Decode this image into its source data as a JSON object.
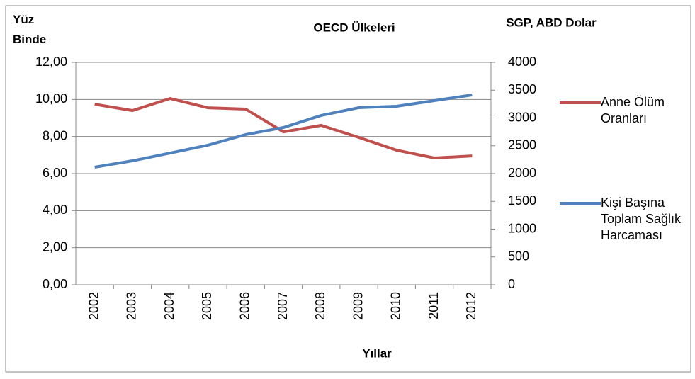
{
  "chart_data": {
    "type": "line",
    "title": "OECD Ülkeleri",
    "y_label": "Yüz Binde",
    "y2_label": "SGP, ABD Dolar",
    "x_label": "Yıllar",
    "categories": [
      "2002",
      "2003",
      "2004",
      "2005",
      "2006",
      "2007",
      "2008",
      "2009",
      "2010",
      "2011",
      "2012"
    ],
    "series": [
      {
        "name": "Anne Ölüm Oranları",
        "color": "#c0504d",
        "values": [
          9.74,
          9.4,
          10.05,
          9.55,
          9.48,
          8.25,
          8.6,
          7.95,
          7.26,
          6.84,
          6.95
        ]
      },
      {
        "name": "Kişi Başına Toplam Sağlık Harcaması",
        "color": "#4f81bd",
        "axis": "y2",
        "values": [
          2115,
          2229,
          2369,
          2510,
          2701,
          2828,
          3045,
          3185,
          3210,
          3312,
          3414
        ]
      }
    ],
    "ylim": [
      0,
      12
    ],
    "yticks": [
      {
        "value": 0,
        "label": "0,00"
      },
      {
        "value": 2,
        "label": "2,00"
      },
      {
        "value": 4,
        "label": "4,00"
      },
      {
        "value": 6,
        "label": "6,00"
      },
      {
        "value": 8,
        "label": "8,00"
      },
      {
        "value": 10,
        "label": "10,00"
      },
      {
        "value": 12,
        "label": "12,00"
      }
    ],
    "y2lim": [
      0,
      4000
    ],
    "y2ticks": [
      0,
      500,
      1000,
      1500,
      2000,
      2500,
      3000,
      3500,
      4000
    ],
    "grid": true,
    "legend": "right"
  }
}
